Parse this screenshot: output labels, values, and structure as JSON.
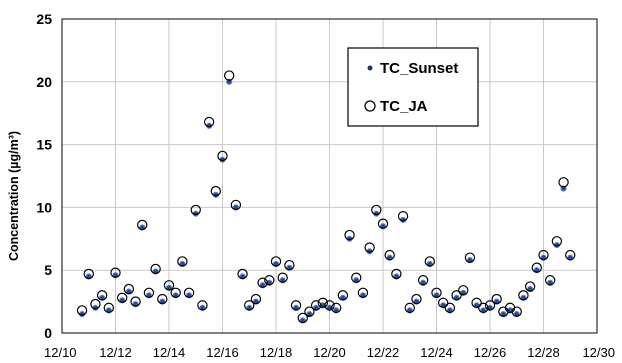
{
  "chart_data": {
    "type": "scatter",
    "title": "",
    "xlabel": "",
    "ylabel": "Concentration (µg/m³)",
    "xlim": [
      "12/10",
      "12/30"
    ],
    "ylim": [
      0,
      25
    ],
    "x_ticks": [
      "12/10",
      "12/12",
      "12/14",
      "12/16",
      "12/18",
      "12/20",
      "12/22",
      "12/24",
      "12/26",
      "12/28",
      "12/30"
    ],
    "y_ticks": [
      0,
      5,
      10,
      15,
      20,
      25
    ],
    "grid": true,
    "legend_position": "top-right",
    "series": [
      {
        "name": "TC_Sunset",
        "marker": "filled-dot",
        "color": "#2b4a8a",
        "x": [
          "12/10 18:00",
          "12/11 00:00",
          "12/11 06:00",
          "12/11 12:00",
          "12/11 18:00",
          "12/12 00:00",
          "12/12 06:00",
          "12/12 12:00",
          "12/12 18:00",
          "12/13 00:00",
          "12/13 06:00",
          "12/13 12:00",
          "12/13 18:00",
          "12/14 00:00",
          "12/14 06:00",
          "12/14 12:00",
          "12/14 18:00",
          "12/15 00:00",
          "12/15 06:00",
          "12/15 12:00",
          "12/15 18:00",
          "12/16 00:00",
          "12/16 06:00",
          "12/16 12:00",
          "12/16 18:00",
          "12/17 00:00",
          "12/17 06:00",
          "12/17 12:00",
          "12/17 18:00",
          "12/18 00:00",
          "12/18 06:00",
          "12/18 12:00",
          "12/18 18:00",
          "12/19 00:00",
          "12/19 06:00",
          "12/19 12:00",
          "12/19 18:00",
          "12/20 00:00",
          "12/20 06:00",
          "12/20 12:00",
          "12/20 18:00",
          "12/21 00:00",
          "12/21 06:00",
          "12/21 12:00",
          "12/21 18:00",
          "12/22 00:00",
          "12/22 06:00",
          "12/22 12:00",
          "12/22 18:00",
          "12/23 00:00",
          "12/23 06:00",
          "12/23 12:00",
          "12/23 18:00",
          "12/24 00:00",
          "12/24 06:00",
          "12/24 12:00",
          "12/24 18:00",
          "12/25 00:00",
          "12/25 06:00",
          "12/25 12:00",
          "12/25 18:00",
          "12/26 00:00",
          "12/26 06:00",
          "12/26 12:00",
          "12/26 18:00",
          "12/27 00:00",
          "12/27 06:00",
          "12/27 12:00",
          "12/27 18:00",
          "12/28 00:00",
          "12/28 06:00",
          "12/28 12:00",
          "12/28 18:00",
          "12/29 00:00"
        ],
        "y": [
          1.5,
          4.5,
          2.0,
          2.8,
          1.8,
          4.6,
          2.6,
          3.3,
          2.3,
          8.4,
          3.0,
          4.9,
          2.5,
          3.6,
          3.0,
          5.5,
          3.0,
          9.5,
          2.0,
          16.5,
          11.0,
          13.8,
          20.0,
          10.0,
          4.5,
          2.0,
          2.5,
          3.8,
          4.0,
          5.5,
          4.2,
          5.2,
          2.0,
          1.0,
          1.5,
          2.0,
          2.2,
          2.0,
          1.8,
          2.8,
          7.5,
          4.2,
          3.0,
          6.5,
          9.5,
          8.5,
          6.0,
          4.5,
          9.0,
          1.8,
          2.5,
          4.0,
          5.5,
          3.0,
          2.2,
          1.8,
          2.8,
          3.2,
          5.8,
          2.2,
          1.8,
          2.0,
          2.5,
          1.5,
          1.8,
          1.5,
          2.8,
          3.5,
          5.0,
          6.0,
          4.0,
          7.0,
          11.5,
          6.0
        ]
      },
      {
        "name": "TC_JA",
        "marker": "open-circle",
        "color": "#000000",
        "x": [
          "12/10 18:00",
          "12/11 00:00",
          "12/11 06:00",
          "12/11 12:00",
          "12/11 18:00",
          "12/12 00:00",
          "12/12 06:00",
          "12/12 12:00",
          "12/12 18:00",
          "12/13 00:00",
          "12/13 06:00",
          "12/13 12:00",
          "12/13 18:00",
          "12/14 00:00",
          "12/14 06:00",
          "12/14 12:00",
          "12/14 18:00",
          "12/15 00:00",
          "12/15 06:00",
          "12/15 12:00",
          "12/15 18:00",
          "12/16 00:00",
          "12/16 06:00",
          "12/16 12:00",
          "12/16 18:00",
          "12/17 00:00",
          "12/17 06:00",
          "12/17 12:00",
          "12/17 18:00",
          "12/18 00:00",
          "12/18 06:00",
          "12/18 12:00",
          "12/18 18:00",
          "12/19 00:00",
          "12/19 06:00",
          "12/19 12:00",
          "12/19 18:00",
          "12/20 00:00",
          "12/20 06:00",
          "12/20 12:00",
          "12/20 18:00",
          "12/21 00:00",
          "12/21 06:00",
          "12/21 12:00",
          "12/21 18:00",
          "12/22 00:00",
          "12/22 06:00",
          "12/22 12:00",
          "12/22 18:00",
          "12/23 00:00",
          "12/23 06:00",
          "12/23 12:00",
          "12/23 18:00",
          "12/24 00:00",
          "12/24 06:00",
          "12/24 12:00",
          "12/24 18:00",
          "12/25 00:00",
          "12/25 06:00",
          "12/25 12:00",
          "12/25 18:00",
          "12/26 00:00",
          "12/26 06:00",
          "12/26 12:00",
          "12/26 18:00",
          "12/27 00:00",
          "12/27 06:00",
          "12/27 12:00",
          "12/27 18:00",
          "12/28 00:00",
          "12/28 06:00",
          "12/28 12:00",
          "12/28 18:00",
          "12/29 00:00"
        ],
        "y": [
          1.8,
          4.7,
          2.3,
          3.0,
          2.0,
          4.8,
          2.8,
          3.5,
          2.5,
          8.6,
          3.2,
          5.1,
          2.7,
          3.8,
          3.2,
          5.7,
          3.2,
          9.8,
          2.2,
          16.8,
          11.3,
          14.1,
          20.5,
          10.2,
          4.7,
          2.2,
          2.7,
          4.0,
          4.2,
          5.7,
          4.4,
          5.4,
          2.2,
          1.2,
          1.7,
          2.2,
          2.4,
          2.2,
          2.0,
          3.0,
          7.8,
          4.4,
          3.2,
          6.8,
          9.8,
          8.7,
          6.2,
          4.7,
          9.3,
          2.0,
          2.7,
          4.2,
          5.7,
          3.2,
          2.4,
          2.0,
          3.0,
          3.4,
          6.0,
          2.4,
          2.0,
          2.2,
          2.7,
          1.7,
          2.0,
          1.7,
          3.0,
          3.7,
          5.2,
          6.2,
          4.2,
          7.3,
          12.0,
          6.2
        ]
      }
    ]
  }
}
